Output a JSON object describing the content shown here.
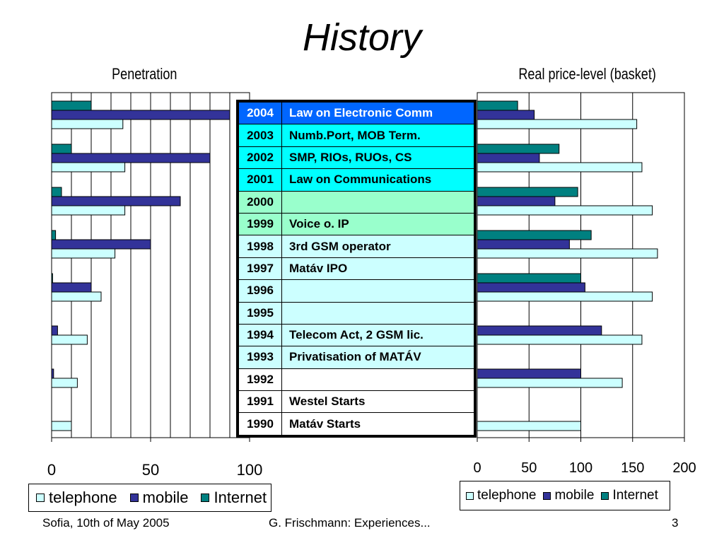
{
  "title": "History",
  "colors": {
    "telephone": "#ccffff",
    "mobile": "#333399",
    "internet": "#008080",
    "row_blue": "#0066ff",
    "row_cyan": "#00ffff",
    "row_green": "#99ffcc",
    "row_light": "#ccffff",
    "row_white": "#ffffff",
    "blue_text": "#ffffff"
  },
  "timeline": [
    {
      "year": "2004",
      "event": "Law on Electronic Comm",
      "style": "blue"
    },
    {
      "year": "2003",
      "event": "Numb.Port, MOB Term.",
      "style": "cyan"
    },
    {
      "year": "2002",
      "event": "SMP, RIOs, RUOs, CS",
      "style": "cyan"
    },
    {
      "year": "2001",
      "event": "Law on Communications",
      "style": "cyan"
    },
    {
      "year": "2000",
      "event": "",
      "style": "green"
    },
    {
      "year": "1999",
      "event": "Voice o. IP",
      "style": "green"
    },
    {
      "year": "1998",
      "event": "3rd GSM operator",
      "style": "light"
    },
    {
      "year": "1997",
      "event": "Matáv IPO",
      "style": "light"
    },
    {
      "year": "1996",
      "event": "",
      "style": "light"
    },
    {
      "year": "1995",
      "event": "",
      "style": "light"
    },
    {
      "year": "1994",
      "event": "Telecom Act, 2 GSM lic.",
      "style": "light"
    },
    {
      "year": "1993",
      "event": "Privatisation of MATÁV",
      "style": "light"
    },
    {
      "year": "1992",
      "event": "",
      "style": "white"
    },
    {
      "year": "1991",
      "event": "Westel Starts",
      "style": "white"
    },
    {
      "year": "1990",
      "event": "Matáv Starts",
      "style": "white"
    }
  ],
  "chart_data": [
    {
      "type": "bar",
      "orientation": "horizontal",
      "title": "Penetration",
      "xlim": [
        0,
        100
      ],
      "xticks": [
        "0",
        "50",
        "100"
      ],
      "categories": [
        "2004",
        "2002",
        "2000",
        "1998",
        "1996",
        "1994",
        "1992",
        "1990"
      ],
      "series": [
        {
          "name": "telephone",
          "values": [
            36,
            37,
            37,
            32,
            25,
            18,
            13,
            10
          ]
        },
        {
          "name": "mobile",
          "values": [
            90,
            80,
            65,
            50,
            20,
            3,
            1,
            0
          ]
        },
        {
          "name": "Internet",
          "values": [
            20,
            10,
            5,
            2,
            0.5,
            0,
            0,
            0
          ]
        }
      ],
      "legend": "bottom",
      "grid": true
    },
    {
      "type": "bar",
      "orientation": "horizontal",
      "title": "Real price-level (basket)",
      "xlim": [
        0,
        200
      ],
      "xticks": [
        "0",
        "50",
        "100",
        "150",
        "200"
      ],
      "categories": [
        "2004",
        "2002",
        "2000",
        "1998",
        "1996",
        "1994",
        "1992",
        "1990"
      ],
      "series": [
        {
          "name": "telephone",
          "values": [
            154,
            159,
            169,
            174,
            169,
            159,
            140,
            100
          ]
        },
        {
          "name": "mobile",
          "values": [
            55,
            60,
            75,
            89,
            104,
            120,
            100,
            0
          ]
        },
        {
          "name": "Internet",
          "values": [
            39,
            79,
            97,
            110,
            100,
            0,
            0,
            0
          ]
        }
      ],
      "legend": "bottom",
      "grid": true
    }
  ],
  "footer": {
    "left": "Sofia, 10th of May 2005",
    "center": "G. Frischmann: Experiences...",
    "page": "3"
  }
}
